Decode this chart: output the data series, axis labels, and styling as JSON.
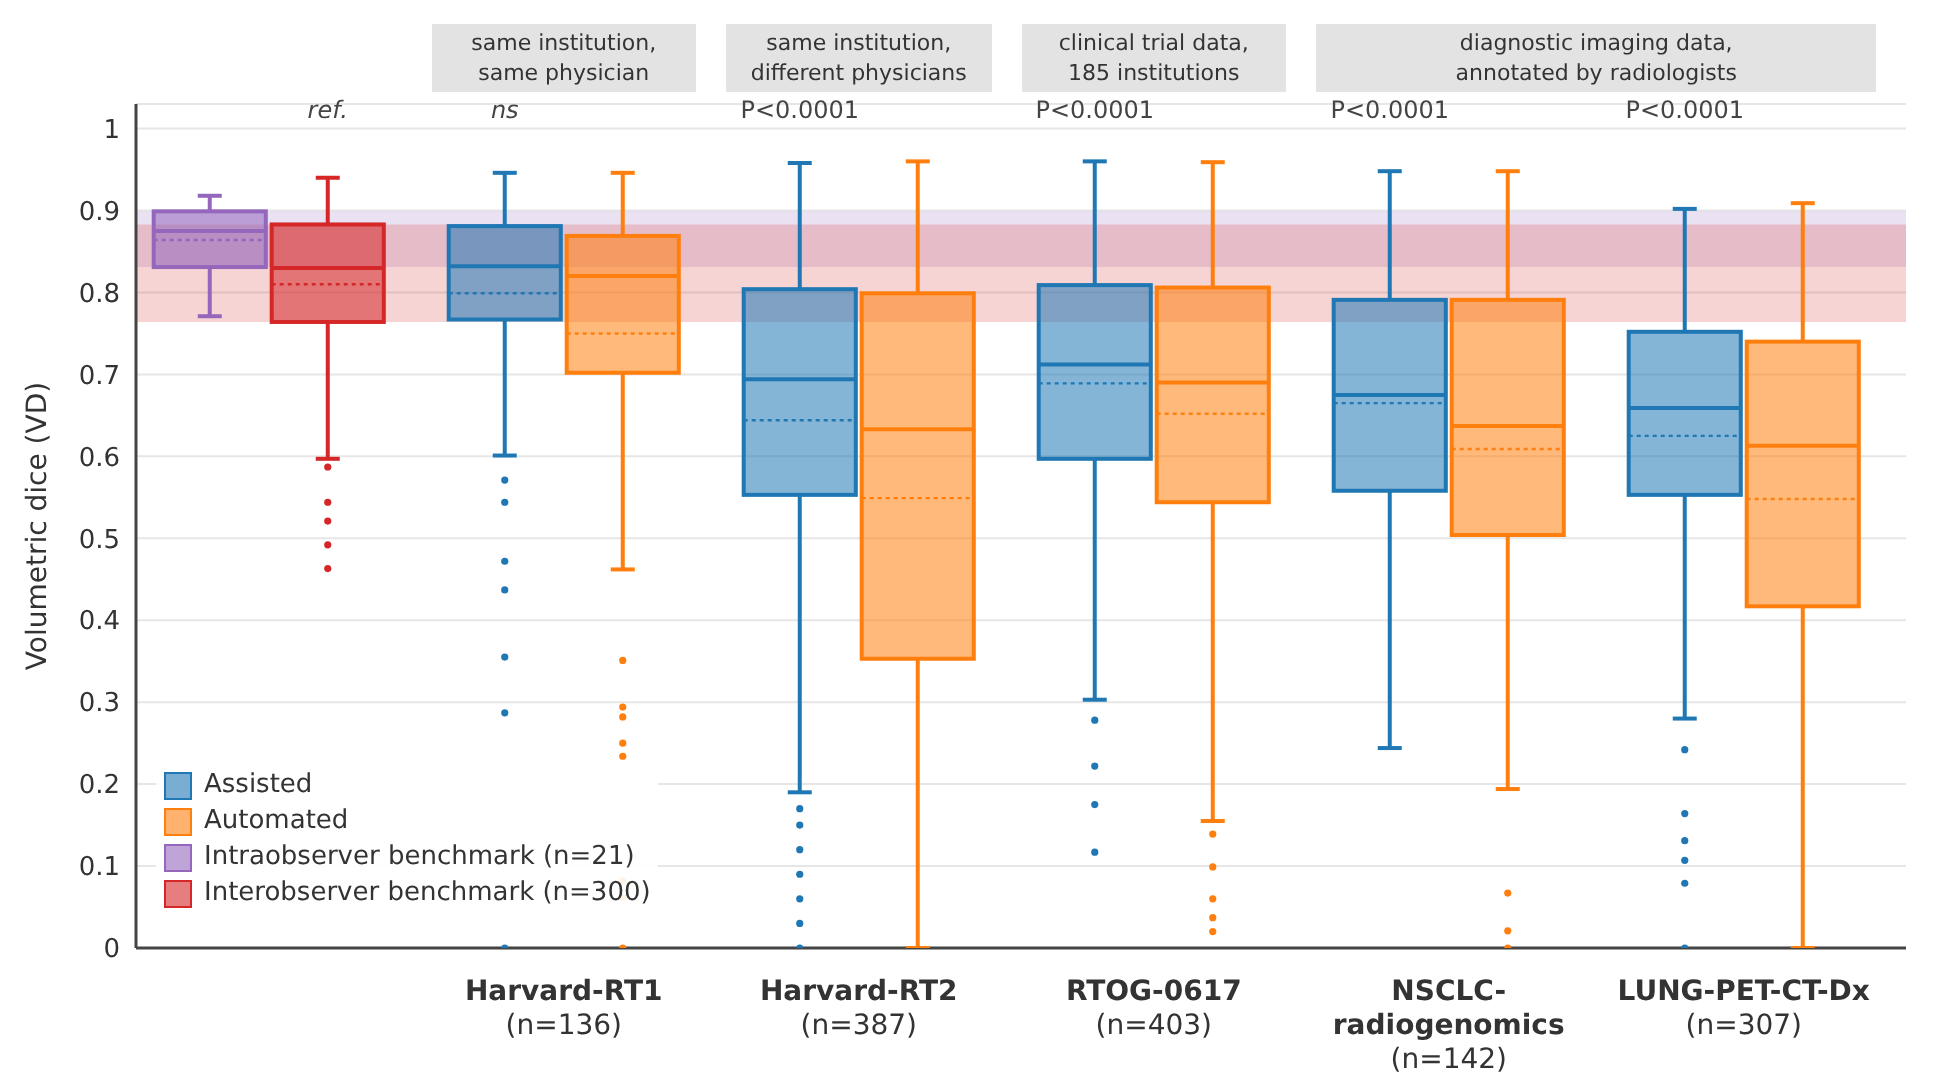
{
  "chart_data": {
    "type": "box",
    "ylabel": "Volumetric dice (VD)",
    "categories": [
      null,
      "Harvard-RT1\n(n=136)",
      "Harvard-RT2\n(n=387)",
      "RTOG-0617\n(n=403)",
      "NSCLC-\nradiogenomics\n(n=142)",
      "LUNG-PET-CT-Dx\n(n=307)"
    ],
    "series": [
      {
        "name": "Assisted",
        "color": "#1f77b4",
        "boxes": [
          null,
          {
            "low": 0.601,
            "q1": 0.767,
            "median": 0.832,
            "q3": 0.881,
            "high": 0.946,
            "mean": 0.799,
            "outliers": [
              0.571,
              0.544,
              0.472,
              0.437,
              0.355,
              0.287,
              0
            ]
          },
          {
            "low": 0.19,
            "q1": 0.553,
            "median": 0.694,
            "q3": 0.804,
            "high": 0.958,
            "mean": 0.644,
            "outliers": [
              0.17,
              0.15,
              0.12,
              0.09,
              0.06,
              0.03,
              0
            ]
          },
          {
            "low": 0.303,
            "q1": 0.597,
            "median": 0.712,
            "q3": 0.809,
            "high": 0.96,
            "mean": 0.689,
            "outliers": [
              0.278,
              0.222,
              0.175,
              0.117
            ]
          },
          {
            "low": 0.244,
            "q1": 0.558,
            "median": 0.675,
            "q3": 0.791,
            "high": 0.948,
            "mean": 0.665
          },
          {
            "low": 0.28,
            "q1": 0.553,
            "median": 0.659,
            "q3": 0.752,
            "high": 0.902,
            "mean": 0.625,
            "outliers": [
              0.242,
              0.164,
              0.131,
              0.107,
              0.079,
              0
            ]
          }
        ]
      },
      {
        "name": "Automated",
        "color": "#ff7f0e",
        "boxes": [
          null,
          {
            "low": 0.462,
            "q1": 0.702,
            "median": 0.82,
            "q3": 0.869,
            "high": 0.946,
            "mean": 0.75,
            "outliers": [
              0.351,
              0.294,
              0.282,
              0.25,
              0.234,
              0.082,
              0.062,
              0
            ]
          },
          {
            "low": 0,
            "q1": 0.353,
            "median": 0.633,
            "q3": 0.799,
            "high": 0.96,
            "mean": 0.549
          },
          {
            "low": 0.155,
            "q1": 0.544,
            "median": 0.69,
            "q3": 0.806,
            "high": 0.959,
            "mean": 0.652,
            "outliers": [
              0.139,
              0.099,
              0.06,
              0.037,
              0.02
            ]
          },
          {
            "low": 0.194,
            "q1": 0.504,
            "median": 0.637,
            "q3": 0.791,
            "high": 0.948,
            "mean": 0.609,
            "outliers": [
              0.067,
              0.021,
              0
            ]
          },
          {
            "low": 0,
            "q1": 0.417,
            "median": 0.613,
            "q3": 0.74,
            "high": 0.909,
            "mean": 0.548
          }
        ]
      },
      {
        "name": "Intraobserver benchmark (n=21)",
        "color": "#9467bd",
        "boxes": [
          {
            "low": 0.771,
            "q1": 0.831,
            "median": 0.875,
            "q3": 0.899,
            "high": 0.918,
            "mean": 0.864
          },
          null,
          null,
          null,
          null,
          null
        ]
      },
      {
        "name": "Interobserver benchmark (n=300)",
        "color": "#d62728",
        "boxes": [
          {
            "low": 0.597,
            "q1": 0.764,
            "median": 0.83,
            "q3": 0.883,
            "high": 0.94,
            "mean": 0.81,
            "outliers": [
              0.587,
              0.544,
              0.521,
              0.492,
              0.463
            ]
          },
          null,
          null,
          null,
          null,
          null
        ]
      }
    ],
    "bands": [
      {
        "axis": "y",
        "from": 0.831,
        "to": 0.899,
        "color": "#9467bd"
      },
      {
        "axis": "y",
        "from": 0.764,
        "to": 0.883,
        "color": "#d62728"
      }
    ],
    "ylim": [
      0,
      1.03
    ],
    "yticks": [
      0,
      0.1,
      0.2,
      0.3,
      0.4,
      0.5,
      0.6,
      0.7,
      0.8,
      0.9,
      1
    ],
    "grid": "y",
    "legend": "bottom left",
    "annotations": [
      "ref.",
      "ns",
      "P<0.0001",
      "P<0.0001",
      "P<0.0001",
      "P<0.0001",
      "same institution,\nsame physician",
      "same institution,\ndifferent physicians",
      "clinical trial data,\n185 institutions",
      "diagnostic imaging data,\nannotated by radiologists"
    ]
  }
}
